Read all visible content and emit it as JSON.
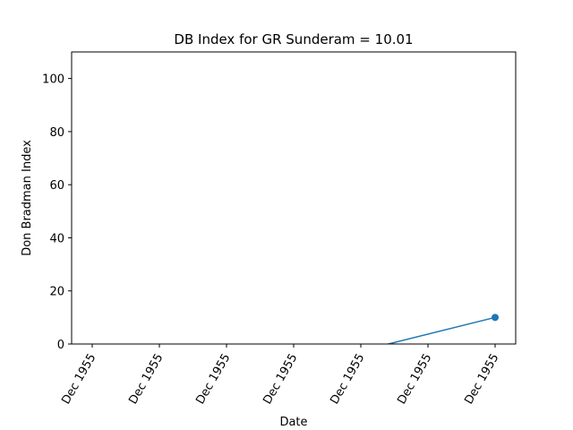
{
  "chart_data": {
    "type": "line",
    "title": "DB Index for GR Sunderam = 10.01",
    "xlabel": "Date",
    "ylabel": "Don Bradman Index",
    "ylim": [
      0,
      110
    ],
    "yticks": [
      0,
      20,
      40,
      60,
      80,
      100
    ],
    "xtick_labels": [
      "Dec 1955",
      "Dec 1955",
      "Dec 1955",
      "Dec 1955",
      "Dec 1955",
      "Dec 1955",
      "Dec 1955"
    ],
    "series": [
      {
        "x": [
          "Dec 1955",
          "Dec 1955"
        ],
        "values": [
          -27.75,
          10.01
        ],
        "markers": [
          false,
          true
        ]
      }
    ],
    "grid": false,
    "colors": {
      "line": "#1f77b4",
      "axis": "#000000"
    }
  }
}
